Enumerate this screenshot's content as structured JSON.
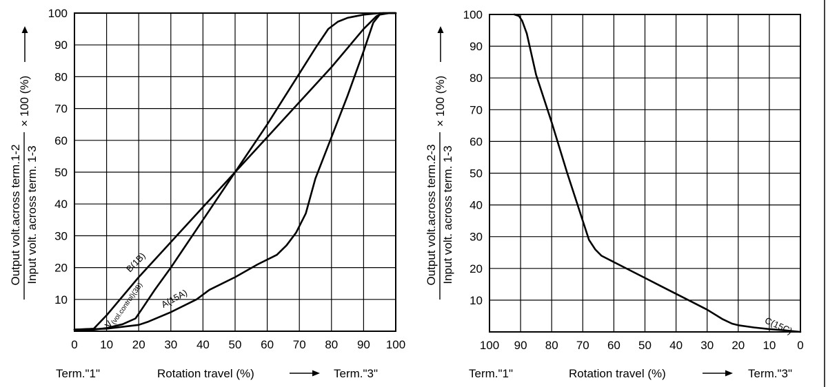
{
  "chart_data": [
    {
      "type": "line",
      "title": "",
      "x_ticks": [
        "0",
        "10",
        "20",
        "30",
        "40",
        "50",
        "60",
        "70",
        "80",
        "90",
        "100"
      ],
      "y_ticks": [
        "10",
        "20",
        "30",
        "40",
        "50",
        "60",
        "70",
        "80",
        "90",
        "100"
      ],
      "xlim": [
        0,
        100
      ],
      "ylim": [
        0,
        100
      ],
      "grid": true,
      "ylabel_numerator": "Output volt.across term.1-2",
      "ylabel_denominator": "Input volt. across term.  1-3",
      "ylabel_multiplier": "× 100 (%)",
      "ylabel_arrow": "↑",
      "bottom_left_label": "Term.\"1\"",
      "bottom_center_label": "Rotation travel (%)",
      "bottom_right_label": "Term.\"3\"",
      "bottom_arrow": "⟶",
      "series": [
        {
          "name": "B(1B)",
          "label_main": "B(1B)",
          "label_sub": "",
          "x": [
            0,
            6,
            10,
            20,
            30,
            40,
            50,
            60,
            70,
            80,
            90,
            94,
            96,
            100
          ],
          "y": [
            0.5,
            0.8,
            5,
            17,
            28,
            39,
            50,
            61,
            72,
            83,
            95,
            99,
            100,
            100
          ]
        },
        {
          "name": "V(vol.control)(3B)",
          "label_main": "V",
          "label_sub": "(vol.control)(3B)",
          "x": [
            0,
            6,
            10,
            15,
            19,
            21,
            25,
            30,
            40,
            50,
            60,
            65,
            70,
            75,
            79,
            82,
            85,
            90,
            95,
            100
          ],
          "y": [
            0.5,
            0.5,
            1,
            2.2,
            4,
            7,
            13,
            20,
            35,
            50,
            65,
            73,
            81,
            89,
            95,
            97.3,
            98.5,
            99.5,
            100,
            100
          ]
        },
        {
          "name": "A(15A)",
          "label_main": "A(15A)",
          "label_sub": "",
          "x": [
            0,
            10,
            20,
            23,
            30,
            38,
            42,
            50,
            57,
            63,
            66,
            69,
            72,
            75,
            80,
            85,
            90,
            93,
            95,
            98,
            100
          ],
          "y": [
            0.5,
            0.8,
            2,
            3,
            6,
            10,
            13,
            17,
            21,
            24,
            27,
            31,
            37,
            48,
            61,
            74,
            88,
            97,
            99.5,
            100,
            100
          ]
        }
      ]
    },
    {
      "type": "line",
      "title": "",
      "x_ticks": [
        "100",
        "90",
        "80",
        "70",
        "60",
        "50",
        "40",
        "30",
        "20",
        "10",
        "0"
      ],
      "y_ticks": [
        "10",
        "20",
        "30",
        "40",
        "50",
        "60",
        "70",
        "80",
        "90",
        "100"
      ],
      "xlim": [
        100,
        0
      ],
      "ylim": [
        0,
        100
      ],
      "grid": true,
      "ylabel_numerator": "Output volt.across term.2-3",
      "ylabel_denominator": "Input volt. across term.  1-3",
      "ylabel_multiplier": "× 100 (%)",
      "ylabel_arrow": "↑",
      "bottom_left_label": "Term.\"1\"",
      "bottom_center_label": "Rotation travel (%)",
      "bottom_right_label": "Term.\"3\"",
      "bottom_arrow": "⟶",
      "series": [
        {
          "name": "C(15C)",
          "label_main": "C(15C)",
          "label_sub": "",
          "x": [
            92,
            90.5,
            89.5,
            88,
            85,
            80,
            75,
            70,
            68,
            66,
            64,
            62,
            60,
            55,
            50,
            45,
            40,
            35,
            30,
            25,
            22,
            20,
            15,
            10,
            5,
            0
          ],
          "y": [
            100,
            99.5,
            98,
            94,
            81,
            66,
            50,
            35,
            29,
            26,
            24,
            23,
            22,
            19.5,
            17,
            14.5,
            12,
            9.5,
            7,
            4,
            2.6,
            2.1,
            1.4,
            0.9,
            0.5,
            0
          ]
        }
      ]
    }
  ]
}
